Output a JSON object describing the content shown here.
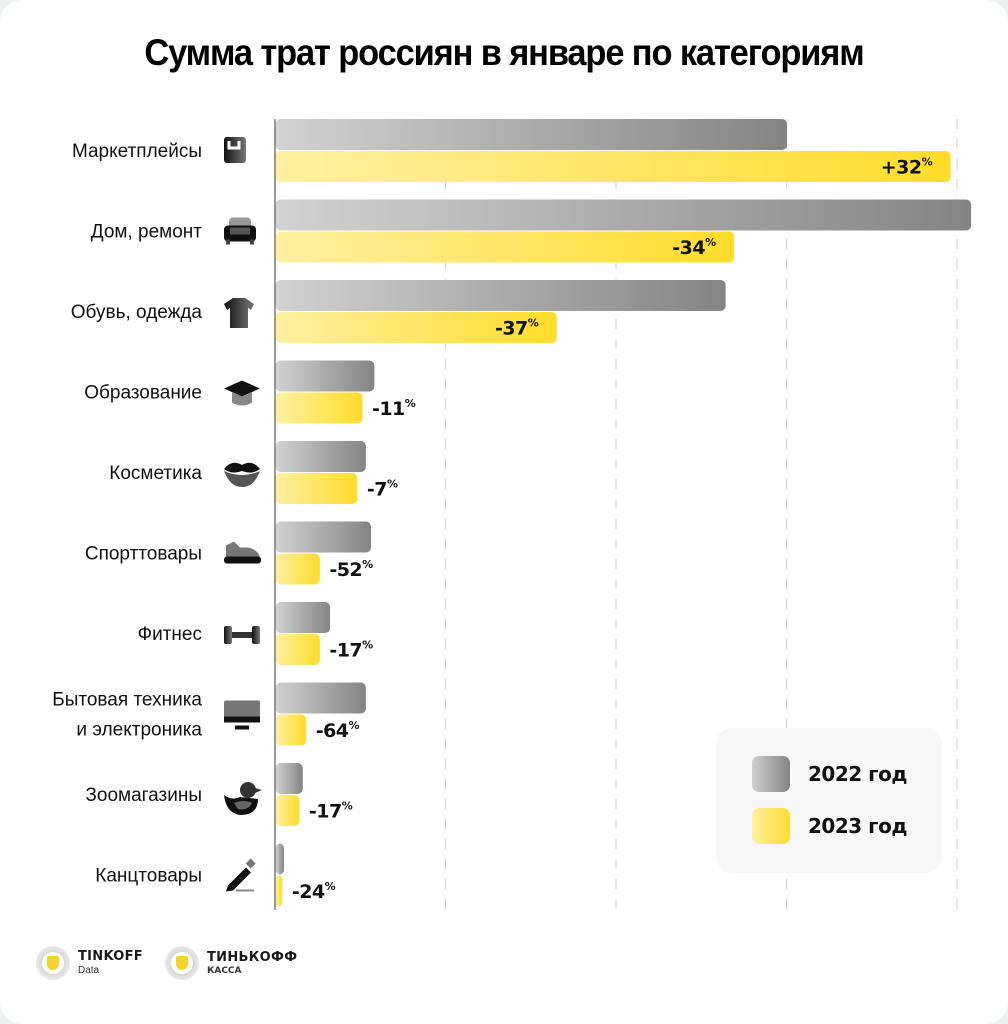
{
  "title": "Сумма трат россиян в январе по категориям",
  "legend": {
    "items": [
      {
        "label": "2022 год",
        "color_from": "#cfcfcf",
        "color_to": "#848484"
      },
      {
        "label": "2023 год",
        "color_from": "#fff0a0",
        "color_to": "#ffdc2d"
      }
    ]
  },
  "logos": [
    {
      "name": "TINKOFF",
      "sub": "Data"
    },
    {
      "name": "ТИНЬКОФФ",
      "sub": "КАССА"
    }
  ],
  "chart_data": {
    "type": "bar",
    "orientation": "horizontal",
    "title": "Сумма трат россиян в январе по категориям",
    "xlabel": "",
    "ylabel": "",
    "x_tick_labels": [],
    "xlim": [
      0,
      4.1
    ],
    "grid": true,
    "units_note": "Relative spending; no axis scale printed (1 unit = 1 gridline step)",
    "legend_position": "bottom-right",
    "categories": [
      {
        "label": "Маркетплейсы",
        "icon": "shopping-bag-icon"
      },
      {
        "label": "Дом, ремонт",
        "icon": "armchair-icon"
      },
      {
        "label": "Обувь, одежда",
        "icon": "tshirt-icon"
      },
      {
        "label": "Образование",
        "icon": "graduation-cap-icon"
      },
      {
        "label": "Косметика",
        "icon": "lips-icon"
      },
      {
        "label": "Спорттовары",
        "icon": "sneaker-icon"
      },
      {
        "label": "Фитнес",
        "icon": "dumbbell-icon"
      },
      {
        "label": "Бытовая техника|и электроника",
        "icon": "monitor-icon"
      },
      {
        "label": "Зоомагазины",
        "icon": "duck-icon"
      },
      {
        "label": "Канцтовары",
        "icon": "pencil-icon"
      }
    ],
    "series": [
      {
        "name": "2022 год",
        "values": [
          3.0,
          4.08,
          2.64,
          0.58,
          0.53,
          0.56,
          0.32,
          0.53,
          0.16,
          0.05
        ]
      },
      {
        "name": "2023 год",
        "values": [
          3.96,
          2.69,
          1.65,
          0.51,
          0.48,
          0.26,
          0.26,
          0.18,
          0.14,
          0.04
        ]
      }
    ],
    "change_labels": [
      "+32",
      "-34",
      "-37",
      "-11",
      "-7",
      "-52",
      "-17",
      "-64",
      "-17",
      "-24"
    ],
    "change_unit": "%"
  }
}
